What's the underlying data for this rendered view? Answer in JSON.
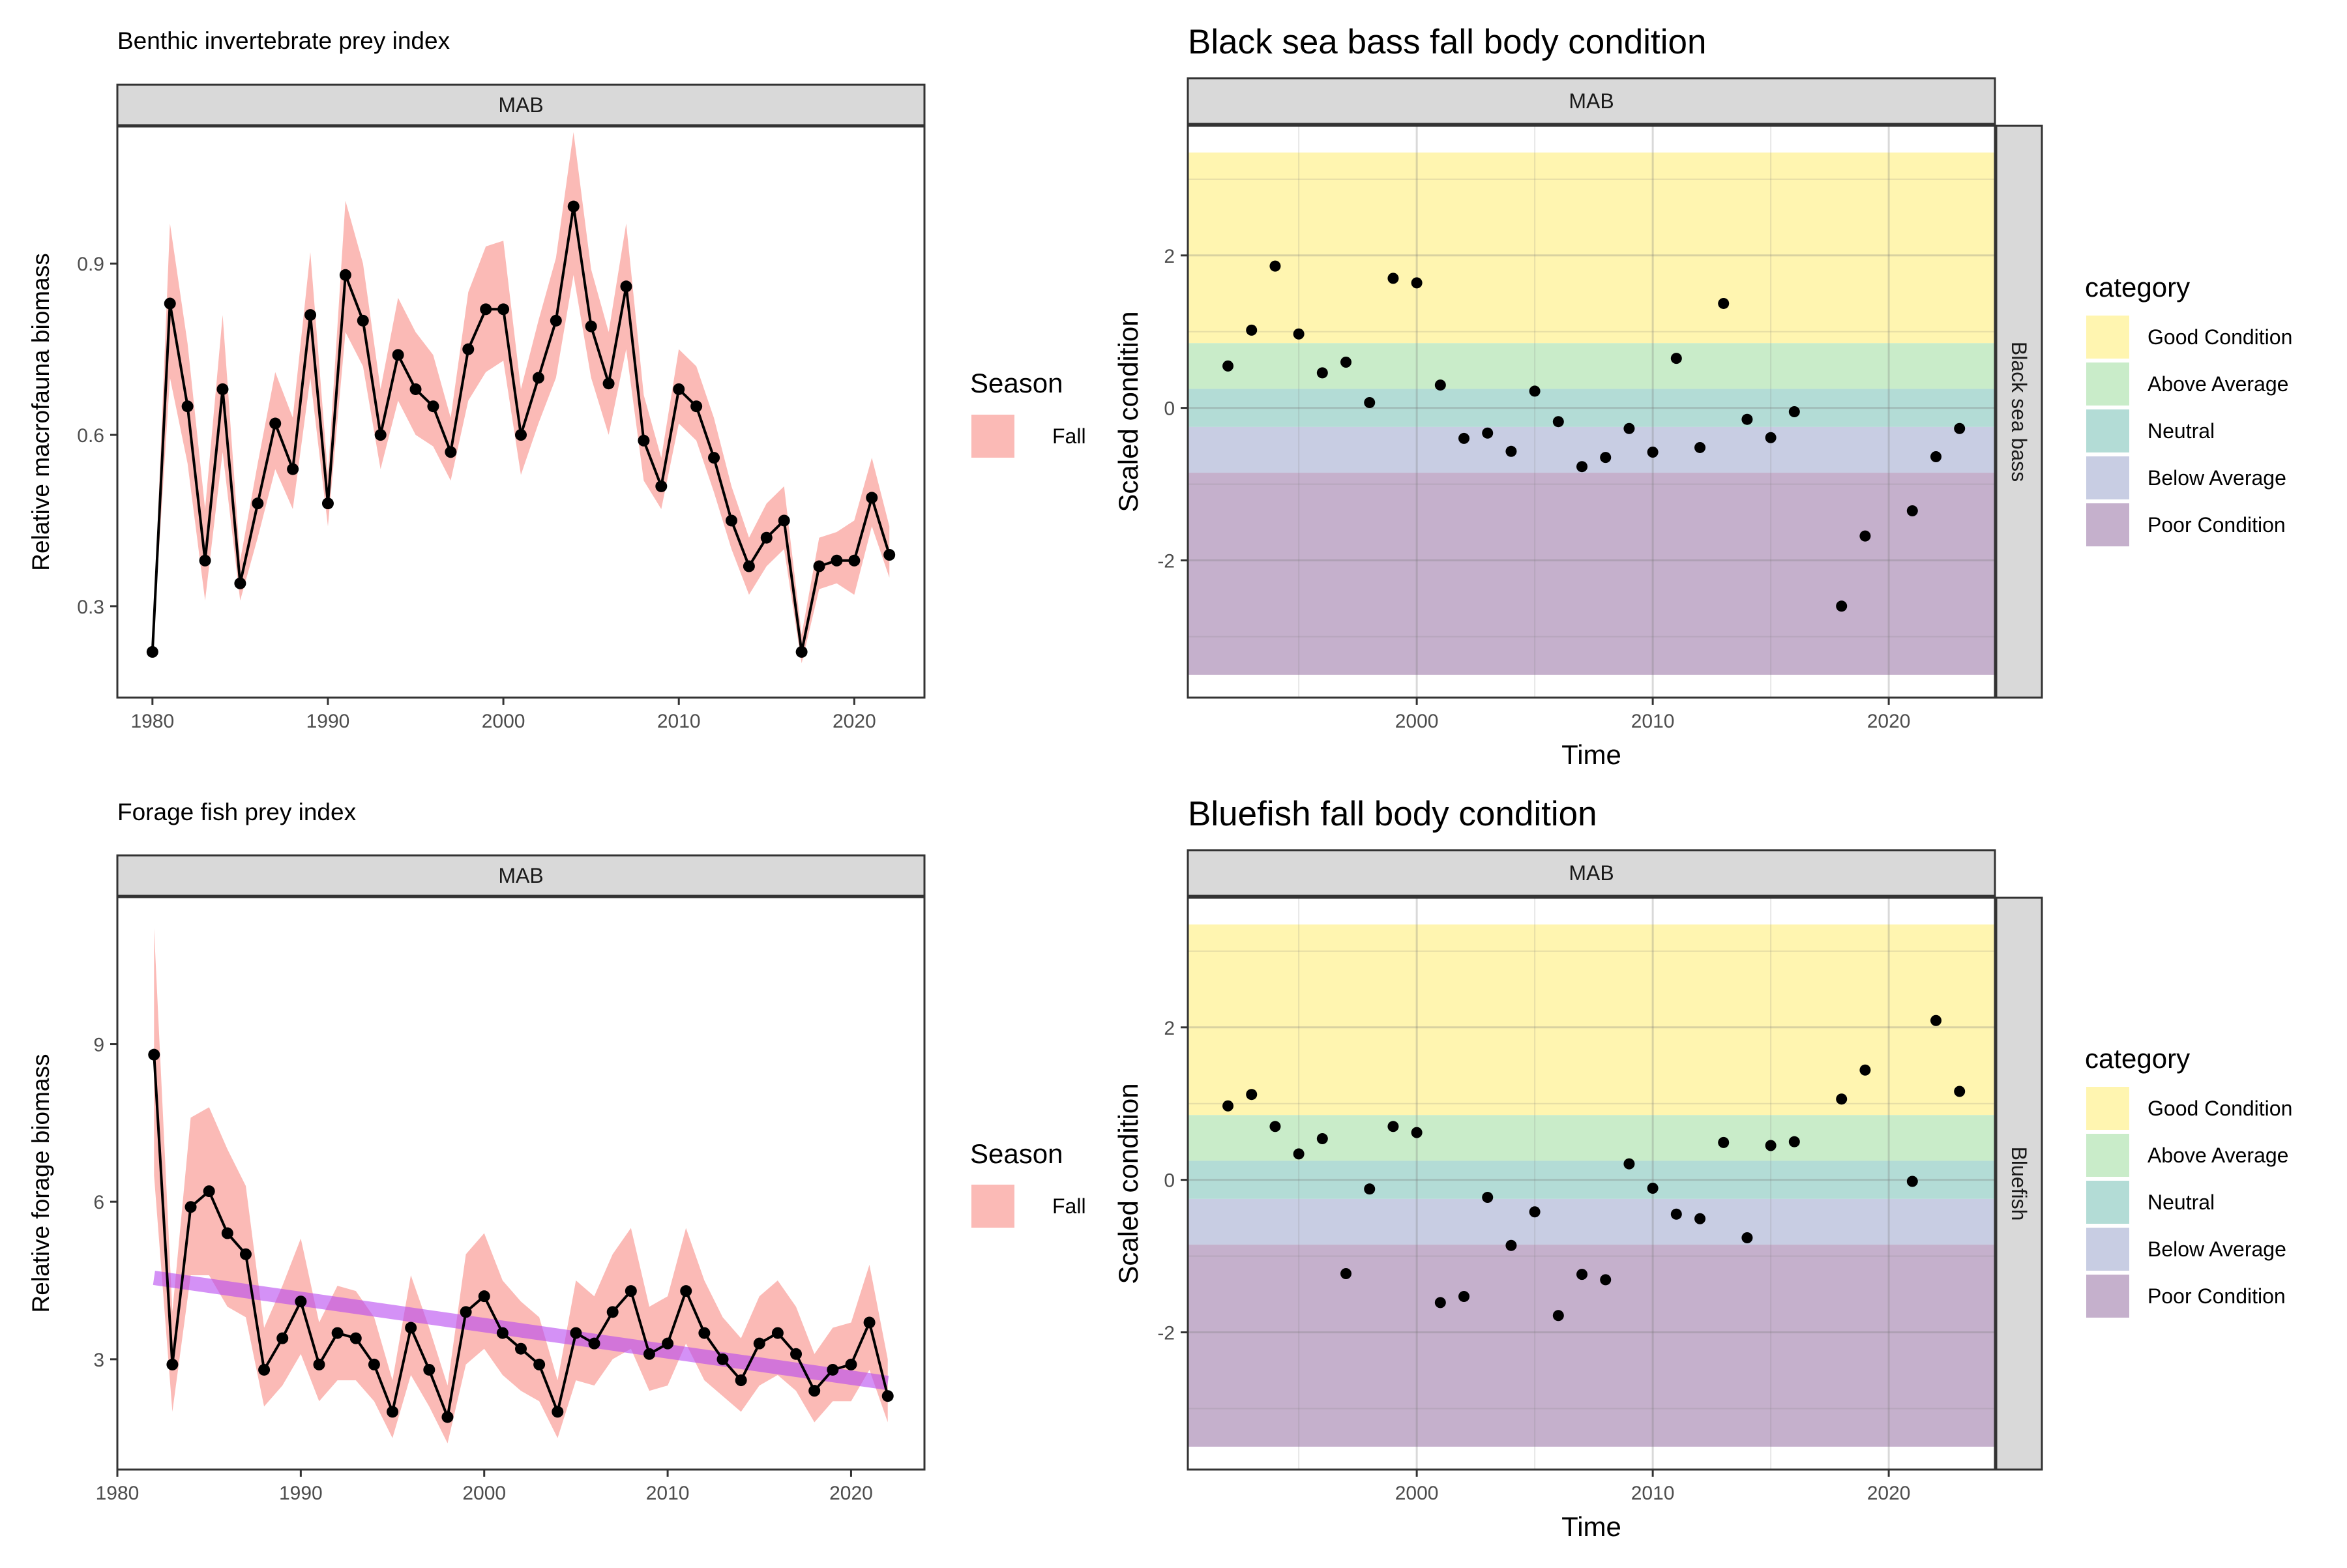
{
  "charts": [
    {
      "title": "Benthic invertebrate prey index",
      "facet": "MAB",
      "ylabel": "Relative macrofauna biomass",
      "xlabel": "",
      "legend_title": "Season",
      "legend_items": [
        "Fall"
      ],
      "x_ticks": [
        "1980",
        "1990",
        "2000",
        "2010",
        "2020"
      ],
      "y_ticks": [
        "0.3",
        "0.6",
        "0.9"
      ]
    },
    {
      "title": "Black sea bass fall body condition",
      "facet": "MAB",
      "facet_right": "Black sea bass",
      "ylabel": "Scaled condition",
      "xlabel": "Time",
      "legend_title": "category",
      "legend_items": [
        "Good Condition",
        "Above Average",
        "Neutral",
        "Below Average",
        "Poor Condition"
      ],
      "x_ticks": [
        "2000",
        "2010",
        "2020"
      ],
      "y_ticks": [
        "-2",
        "0",
        "2"
      ]
    },
    {
      "title": "Forage fish prey index",
      "facet": "MAB",
      "ylabel": "Relative forage biomass",
      "xlabel": "",
      "legend_title": "Season",
      "legend_items": [
        "Fall"
      ],
      "x_ticks": [
        "1980",
        "1990",
        "2000",
        "2010",
        "2020"
      ],
      "y_ticks": [
        "3",
        "6",
        "9"
      ]
    },
    {
      "title": "Bluefish fall body condition",
      "facet": "MAB",
      "facet_right": "Bluefish",
      "ylabel": "Scaled condition",
      "xlabel": "Time",
      "legend_title": "category",
      "legend_items": [
        "Good Condition",
        "Above Average",
        "Neutral",
        "Below Average",
        "Poor Condition"
      ],
      "x_ticks": [
        "2000",
        "2010",
        "2020"
      ],
      "y_ticks": [
        "-2",
        "0",
        "2"
      ]
    }
  ],
  "colors": {
    "ribbon": "#f8766d",
    "trend": "#b848f0",
    "good": "#fff5b0",
    "above": "#c9ecc9",
    "neutral": "#b3dcd6",
    "below": "#c8cde3",
    "poor": "#c5b0cc"
  },
  "chart_data": [
    {
      "type": "line",
      "title": "Benthic invertebrate prey index",
      "facet": "MAB",
      "ylabel": "Relative macrofauna biomass",
      "xlim": [
        1978,
        2024
      ],
      "ylim": [
        0.14,
        1.14
      ],
      "series": [
        {
          "name": "Fall",
          "x": [
            1980,
            1981,
            1982,
            1983,
            1984,
            1985,
            1986,
            1987,
            1988,
            1989,
            1990,
            1991,
            1992,
            1993,
            1994,
            1995,
            1996,
            1997,
            1998,
            1999,
            2000,
            2001,
            2002,
            2003,
            2004,
            2005,
            2006,
            2007,
            2008,
            2009,
            2010,
            2011,
            2012,
            2013,
            2014,
            2015,
            2016,
            2017,
            2018,
            2019,
            2020,
            2021,
            2022
          ],
          "y": [
            0.22,
            0.83,
            0.65,
            0.38,
            0.68,
            0.34,
            0.48,
            0.62,
            0.54,
            0.81,
            0.48,
            0.88,
            0.8,
            0.6,
            0.74,
            0.68,
            0.65,
            0.57,
            0.75,
            0.82,
            0.82,
            0.6,
            0.7,
            0.8,
            1.0,
            0.79,
            0.69,
            0.86,
            0.59,
            0.51,
            0.68,
            0.65,
            0.56,
            0.45,
            0.37,
            0.42,
            0.45,
            0.22,
            0.37,
            0.38,
            0.38,
            0.49,
            0.39
          ],
          "lower": [
            0.22,
            0.7,
            0.55,
            0.31,
            0.57,
            0.31,
            0.42,
            0.54,
            0.47,
            0.7,
            0.44,
            0.78,
            0.72,
            0.54,
            0.66,
            0.6,
            0.58,
            0.52,
            0.66,
            0.71,
            0.73,
            0.53,
            0.62,
            0.7,
            0.88,
            0.7,
            0.6,
            0.75,
            0.52,
            0.47,
            0.62,
            0.59,
            0.5,
            0.4,
            0.32,
            0.37,
            0.4,
            0.2,
            0.33,
            0.34,
            0.32,
            0.44,
            0.35
          ],
          "upper": [
            0.22,
            0.97,
            0.76,
            0.47,
            0.81,
            0.38,
            0.55,
            0.71,
            0.63,
            0.92,
            0.53,
            1.01,
            0.9,
            0.68,
            0.84,
            0.78,
            0.74,
            0.63,
            0.85,
            0.93,
            0.94,
            0.68,
            0.8,
            0.91,
            1.13,
            0.89,
            0.78,
            0.97,
            0.67,
            0.56,
            0.75,
            0.72,
            0.63,
            0.51,
            0.42,
            0.48,
            0.51,
            0.25,
            0.42,
            0.43,
            0.45,
            0.56,
            0.44
          ]
        }
      ]
    },
    {
      "type": "scatter",
      "title": "Black sea bass fall body condition",
      "facet": "MAB",
      "ylabel": "Scaled condition",
      "xlabel": "Time",
      "xlim": [
        1990.3,
        2024.5
      ],
      "ylim": [
        -3.8,
        3.7
      ],
      "category_bands": [
        {
          "name": "Good Condition",
          "ymin": 0.85,
          "ymax": 3.35
        },
        {
          "name": "Above Average",
          "ymin": 0.25,
          "ymax": 0.85
        },
        {
          "name": "Neutral",
          "ymin": -0.25,
          "ymax": 0.25
        },
        {
          "name": "Below Average",
          "ymin": -0.85,
          "ymax": -0.25
        },
        {
          "name": "Poor Condition",
          "ymin": -3.5,
          "ymax": -0.85
        }
      ],
      "x": [
        1992,
        1993,
        1994,
        1995,
        1996,
        1997,
        1998,
        1999,
        2000,
        2001,
        2002,
        2003,
        2004,
        2005,
        2006,
        2007,
        2008,
        2009,
        2010,
        2011,
        2012,
        2013,
        2014,
        2015,
        2016,
        2018,
        2019,
        2021,
        2022,
        2023
      ],
      "y": [
        0.55,
        1.02,
        1.86,
        0.97,
        0.46,
        0.6,
        0.07,
        1.7,
        1.64,
        0.3,
        -0.4,
        -0.33,
        -0.57,
        0.22,
        -0.18,
        -0.77,
        -0.65,
        -0.27,
        -0.58,
        0.65,
        -0.52,
        1.37,
        -0.15,
        -0.39,
        -0.05,
        -2.6,
        -1.68,
        -1.35,
        -0.64,
        -0.27
      ]
    },
    {
      "type": "line",
      "title": "Forage fish prey index",
      "facet": "MAB",
      "ylabel": "Relative forage biomass",
      "xlim": [
        1980,
        2024
      ],
      "ylim": [
        0.9,
        11.8
      ],
      "series": [
        {
          "name": "Fall",
          "x": [
            1982,
            1983,
            1984,
            1985,
            1986,
            1987,
            1988,
            1989,
            1990,
            1991,
            1992,
            1993,
            1994,
            1995,
            1996,
            1997,
            1998,
            1999,
            2000,
            2001,
            2002,
            2003,
            2004,
            2005,
            2006,
            2007,
            2008,
            2009,
            2010,
            2011,
            2012,
            2013,
            2014,
            2015,
            2016,
            2017,
            2018,
            2019,
            2020,
            2021,
            2022
          ],
          "y": [
            8.8,
            2.9,
            5.9,
            6.2,
            5.4,
            5.0,
            2.8,
            3.4,
            4.1,
            2.9,
            3.5,
            3.4,
            2.9,
            2.0,
            3.6,
            2.8,
            1.9,
            3.9,
            4.2,
            3.5,
            3.2,
            2.9,
            2.0,
            3.5,
            3.3,
            3.9,
            4.3,
            3.1,
            3.3,
            4.3,
            3.5,
            3.0,
            2.6,
            3.3,
            3.5,
            3.1,
            2.4,
            2.8,
            2.9,
            3.7,
            2.3
          ],
          "lower": [
            6.5,
            2.0,
            4.6,
            4.6,
            4.0,
            3.8,
            2.1,
            2.5,
            3.1,
            2.2,
            2.6,
            2.6,
            2.2,
            1.5,
            2.7,
            2.1,
            1.4,
            2.9,
            3.2,
            2.7,
            2.4,
            2.2,
            1.5,
            2.6,
            2.5,
            3.0,
            3.2,
            2.4,
            2.5,
            3.3,
            2.6,
            2.3,
            2.0,
            2.5,
            2.7,
            2.4,
            1.8,
            2.2,
            2.2,
            2.8,
            1.8
          ],
          "upper": [
            11.2,
            3.9,
            7.6,
            7.8,
            7.0,
            6.3,
            3.6,
            4.4,
            5.3,
            3.7,
            4.4,
            4.3,
            3.8,
            2.6,
            4.6,
            3.6,
            2.5,
            5.0,
            5.4,
            4.5,
            4.1,
            3.8,
            2.6,
            4.5,
            4.2,
            5.0,
            5.5,
            4.0,
            4.2,
            5.5,
            4.5,
            3.8,
            3.4,
            4.2,
            4.5,
            4.0,
            3.1,
            3.6,
            3.7,
            4.8,
            3.0
          ]
        },
        {
          "name": "",
          "x": [
            1982,
            2022
          ],
          "y": [
            4.55,
            2.55
          ]
        }
      ]
    },
    {
      "type": "scatter",
      "title": "Bluefish fall body condition",
      "facet": "MAB",
      "ylabel": "Scaled condition",
      "xlabel": "Time",
      "xlim": [
        1990.3,
        2024.5
      ],
      "ylim": [
        -3.8,
        3.7
      ],
      "category_bands": [
        {
          "name": "Good Condition",
          "ymin": 0.85,
          "ymax": 3.35
        },
        {
          "name": "Above Average",
          "ymin": 0.25,
          "ymax": 0.85
        },
        {
          "name": "Neutral",
          "ymin": -0.25,
          "ymax": 0.25
        },
        {
          "name": "Below Average",
          "ymin": -0.85,
          "ymax": -0.25
        },
        {
          "name": "Poor Condition",
          "ymin": -3.5,
          "ymax": -0.85
        }
      ],
      "x": [
        1992,
        1993,
        1994,
        1995,
        1996,
        1997,
        1998,
        1999,
        2000,
        2001,
        2002,
        2003,
        2004,
        2005,
        2006,
        2007,
        2008,
        2009,
        2010,
        2011,
        2012,
        2013,
        2014,
        2015,
        2016,
        2018,
        2019,
        2021,
        2022,
        2023
      ],
      "y": [
        0.97,
        1.12,
        0.7,
        0.34,
        0.54,
        -1.23,
        -0.12,
        0.7,
        0.62,
        -1.61,
        -1.53,
        -0.23,
        -0.86,
        -0.42,
        -1.78,
        -1.24,
        -1.31,
        0.21,
        -0.11,
        -0.45,
        -0.51,
        0.49,
        -0.76,
        0.45,
        0.5,
        1.06,
        1.44,
        -0.02,
        2.09,
        1.16
      ]
    }
  ]
}
